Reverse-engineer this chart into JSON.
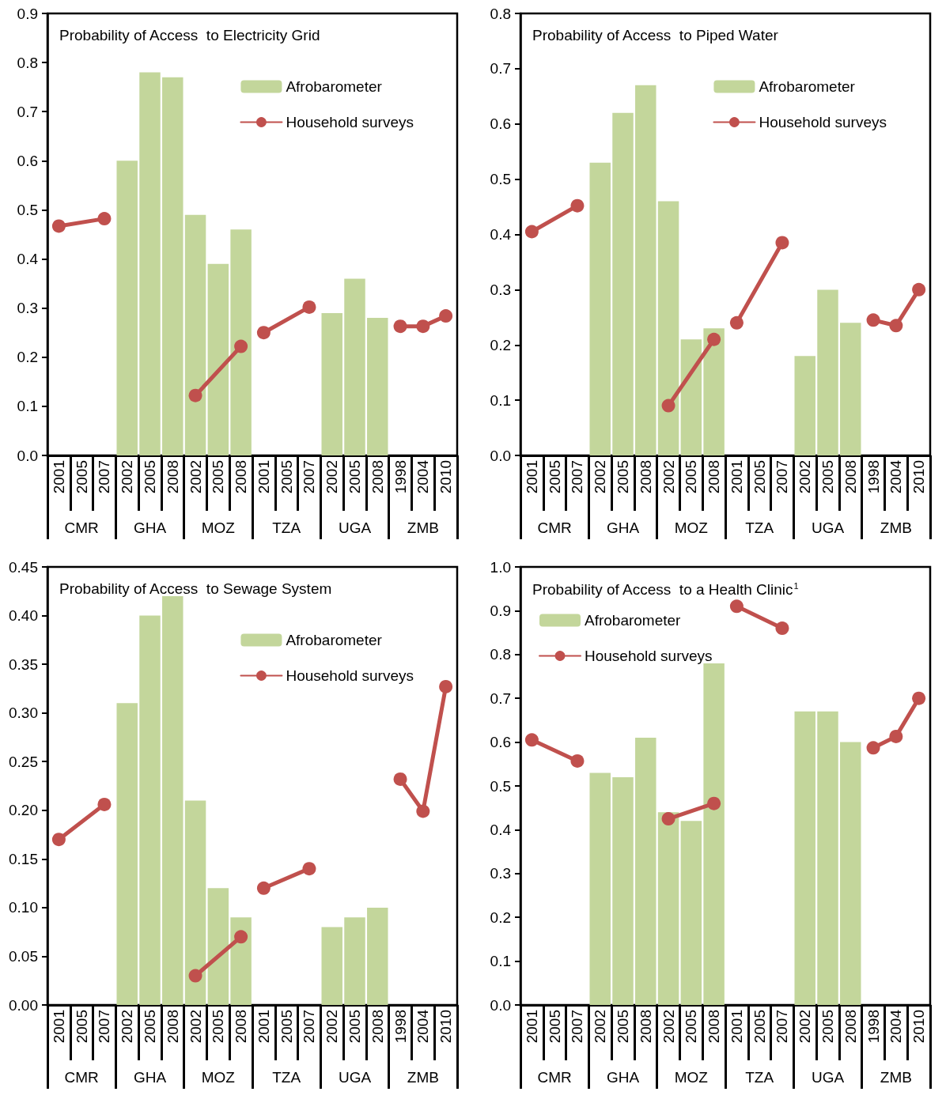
{
  "chart_data": [
    {
      "type": "bar",
      "title": "Probability of Access  to Electricity Grid",
      "categories": [
        "2001",
        "2005",
        "2007",
        "2002",
        "2005",
        "2008",
        "2002",
        "2005",
        "2008",
        "2001",
        "2005",
        "2007",
        "2002",
        "2005",
        "2008",
        "1998",
        "2004",
        "2010"
      ],
      "annotations": [
        "CMR",
        "GHA",
        "MOZ",
        "TZA",
        "UGA",
        "ZMB"
      ],
      "series": [
        {
          "name": "Afrobarometer",
          "color": "#c3d69b",
          "values": [
            null,
            null,
            null,
            0.6,
            0.78,
            0.77,
            0.49,
            0.39,
            0.46,
            null,
            null,
            null,
            0.29,
            0.36,
            0.28,
            null,
            null,
            null
          ]
        },
        {
          "name": "Household surveys",
          "type": "line",
          "color": "#c0504d",
          "values": [
            0.467,
            null,
            0.482,
            null,
            null,
            null,
            0.122,
            null,
            0.222,
            0.25,
            null,
            0.302,
            null,
            null,
            null,
            0.263,
            0.263,
            0.284
          ]
        }
      ],
      "ylim": [
        0,
        0.9
      ],
      "yticks": [
        {
          "value": 0,
          "label": "0.0"
        },
        {
          "value": 0.1,
          "label": "0.1"
        },
        {
          "value": 0.2,
          "label": "0.2"
        },
        {
          "value": 0.3,
          "label": "0.3"
        },
        {
          "value": 0.4,
          "label": "0.4"
        },
        {
          "value": 0.5,
          "label": "0.5"
        },
        {
          "value": 0.6,
          "label": "0.6"
        },
        {
          "value": 0.7,
          "label": "0.7"
        },
        {
          "value": 0.8,
          "label": "0.8"
        },
        {
          "value": 0.9,
          "label": "0.9"
        }
      ],
      "legend": "top right",
      "marker": "circle"
    },
    {
      "type": "bar",
      "title": "Probability of Access  to Piped Water",
      "categories": [
        "2001",
        "2005",
        "2007",
        "2002",
        "2005",
        "2008",
        "2002",
        "2005",
        "2008",
        "2001",
        "2005",
        "2007",
        "2002",
        "2005",
        "2008",
        "1998",
        "2004",
        "2010"
      ],
      "annotations": [
        "CMR",
        "GHA",
        "MOZ",
        "TZA",
        "UGA",
        "ZMB"
      ],
      "series": [
        {
          "name": "Afrobarometer",
          "color": "#c3d69b",
          "values": [
            null,
            null,
            null,
            0.53,
            0.62,
            0.67,
            0.46,
            0.21,
            0.23,
            null,
            null,
            null,
            0.18,
            0.3,
            0.24,
            null,
            null,
            null
          ]
        },
        {
          "name": "Household surveys",
          "type": "line",
          "color": "#c0504d",
          "values": [
            0.405,
            null,
            0.452,
            null,
            null,
            null,
            0.09,
            null,
            0.21,
            0.24,
            null,
            0.385,
            null,
            null,
            null,
            0.245,
            0.235,
            0.3
          ]
        }
      ],
      "ylim": [
        0,
        0.8
      ],
      "yticks": [
        {
          "value": 0,
          "label": "0.0"
        },
        {
          "value": 0.1,
          "label": "0.1"
        },
        {
          "value": 0.2,
          "label": "0.2"
        },
        {
          "value": 0.3,
          "label": "0.3"
        },
        {
          "value": 0.4,
          "label": "0.4"
        },
        {
          "value": 0.5,
          "label": "0.5"
        },
        {
          "value": 0.6,
          "label": "0.6"
        },
        {
          "value": 0.7,
          "label": "0.7"
        },
        {
          "value": 0.8,
          "label": "0.8"
        }
      ],
      "legend": "top right",
      "marker": "circle"
    },
    {
      "type": "bar",
      "title": "Probability of Access  to Sewage System",
      "categories": [
        "2001",
        "2005",
        "2007",
        "2002",
        "2005",
        "2008",
        "2002",
        "2005",
        "2008",
        "2001",
        "2005",
        "2007",
        "2002",
        "2005",
        "2008",
        "1998",
        "2004",
        "2010"
      ],
      "annotations": [
        "CMR",
        "GHA",
        "MOZ",
        "TZA",
        "UGA",
        "ZMB"
      ],
      "series": [
        {
          "name": "Afrobarometer",
          "color": "#c3d69b",
          "values": [
            null,
            null,
            null,
            0.31,
            0.4,
            0.42,
            0.21,
            0.12,
            0.09,
            null,
            null,
            null,
            0.08,
            0.09,
            0.1,
            null,
            null,
            null
          ]
        },
        {
          "name": "Household surveys",
          "type": "line",
          "color": "#c0504d",
          "values": [
            0.17,
            null,
            0.206,
            null,
            null,
            null,
            0.03,
            null,
            0.07,
            0.12,
            null,
            0.14,
            null,
            null,
            null,
            0.232,
            0.199,
            0.327
          ]
        }
      ],
      "ylim": [
        0,
        0.45
      ],
      "yticks": [
        {
          "value": 0,
          "label": "0.00"
        },
        {
          "value": 0.05,
          "label": "0.05"
        },
        {
          "value": 0.1,
          "label": "0.10"
        },
        {
          "value": 0.15,
          "label": "0.15"
        },
        {
          "value": 0.2,
          "label": "0.20"
        },
        {
          "value": 0.25,
          "label": "0.25"
        },
        {
          "value": 0.3,
          "label": "0.30"
        },
        {
          "value": 0.35,
          "label": "0.35"
        },
        {
          "value": 0.4,
          "label": "0.40"
        },
        {
          "value": 0.45,
          "label": "0.45"
        }
      ],
      "legend": "top right",
      "marker": "circle"
    },
    {
      "type": "bar",
      "title": "Probability of Access  to a Health Clinic$^{1}$",
      "categories": [
        "2001",
        "2005",
        "2007",
        "2002",
        "2005",
        "2008",
        "2002",
        "2005",
        "2008",
        "2001",
        "2005",
        "2007",
        "2002",
        "2005",
        "2008",
        "1998",
        "2004",
        "2010"
      ],
      "annotations": [
        "CMR",
        "GHA",
        "MOZ",
        "TZA",
        "UGA",
        "ZMB"
      ],
      "series": [
        {
          "name": "Afrobarometer",
          "color": "#c3d69b",
          "values": [
            null,
            null,
            null,
            0.53,
            0.52,
            0.61,
            0.44,
            0.42,
            0.78,
            null,
            null,
            null,
            0.67,
            0.67,
            0.6,
            null,
            null,
            null
          ]
        },
        {
          "name": "Household surveys",
          "type": "line",
          "color": "#c0504d",
          "values": [
            0.605,
            null,
            0.557,
            null,
            null,
            null,
            0.425,
            null,
            0.46,
            0.91,
            null,
            0.86,
            null,
            null,
            null,
            0.587,
            0.613,
            0.7
          ]
        }
      ],
      "ylim": [
        0,
        1.0
      ],
      "yticks": [
        {
          "value": 0,
          "label": "0.0"
        },
        {
          "value": 0.1,
          "label": "0.1"
        },
        {
          "value": 0.2,
          "label": "0.2"
        },
        {
          "value": 0.3,
          "label": "0.3"
        },
        {
          "value": 0.4,
          "label": "0.4"
        },
        {
          "value": 0.5,
          "label": "0.5"
        },
        {
          "value": 0.6,
          "label": "0.6"
        },
        {
          "value": 0.7,
          "label": "0.7"
        },
        {
          "value": 0.8,
          "label": "0.8"
        },
        {
          "value": 0.9,
          "label": "0.9"
        },
        {
          "value": 1.0,
          "label": "1.0"
        }
      ],
      "legend": "top left",
      "marker": "circle"
    }
  ]
}
